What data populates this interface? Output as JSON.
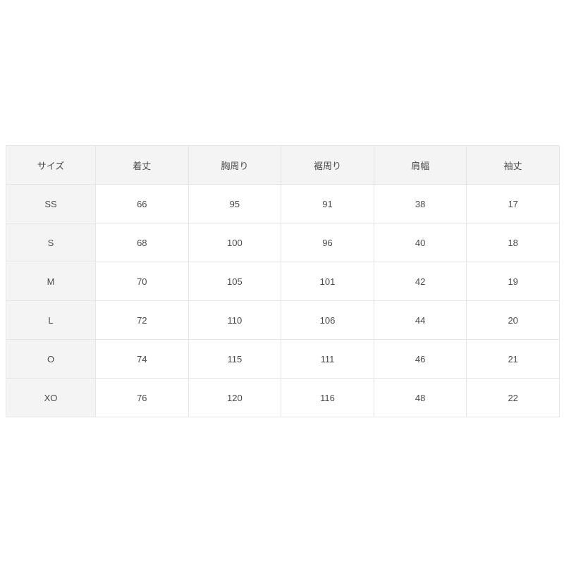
{
  "table": {
    "headers": [
      "サイズ",
      "着丈",
      "胸周り",
      "裾周り",
      "肩幅",
      "袖丈"
    ],
    "rows": [
      [
        "SS",
        "66",
        "95",
        "91",
        "38",
        "17"
      ],
      [
        "S",
        "68",
        "100",
        "96",
        "40",
        "18"
      ],
      [
        "M",
        "70",
        "105",
        "101",
        "42",
        "19"
      ],
      [
        "L",
        "72",
        "110",
        "106",
        "44",
        "20"
      ],
      [
        "O",
        "74",
        "115",
        "111",
        "46",
        "21"
      ],
      [
        "XO",
        "76",
        "120",
        "116",
        "48",
        "22"
      ]
    ]
  },
  "colors": {
    "header_background": "#f4f4f4",
    "cell_background": "#ffffff",
    "border": "#e5e5e5",
    "text": "#4a4a4a",
    "page_background": "#ffffff"
  }
}
